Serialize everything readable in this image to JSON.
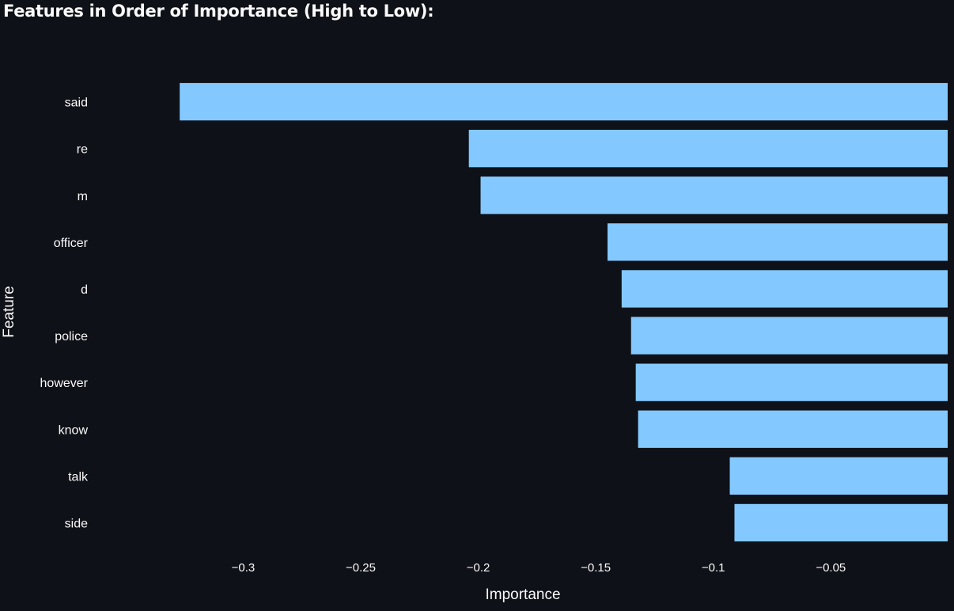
{
  "title": "Features in Order of Importance (High to Low):",
  "chart_data": {
    "type": "bar",
    "orientation": "horizontal",
    "categories": [
      "said",
      "re",
      "m",
      "officer",
      "d",
      "police",
      "however",
      "know",
      "talk",
      "side"
    ],
    "values": [
      -0.327,
      -0.204,
      -0.199,
      -0.145,
      -0.139,
      -0.135,
      -0.133,
      -0.132,
      -0.093,
      -0.091
    ],
    "xlabel": "Importance",
    "ylabel": "Feature",
    "xlim": [
      -0.356,
      -0.0003
    ],
    "xticks": [
      -0.3,
      -0.25,
      -0.2,
      -0.15,
      -0.1,
      -0.05
    ],
    "xtick_labels": [
      "−0.3",
      "−0.25",
      "−0.2",
      "−0.15",
      "−0.1",
      "−0.05"
    ],
    "grid": false,
    "legend": "none",
    "bar_color": "#83c9ff",
    "background": "#0e1117",
    "text_color": "#fafafa"
  }
}
